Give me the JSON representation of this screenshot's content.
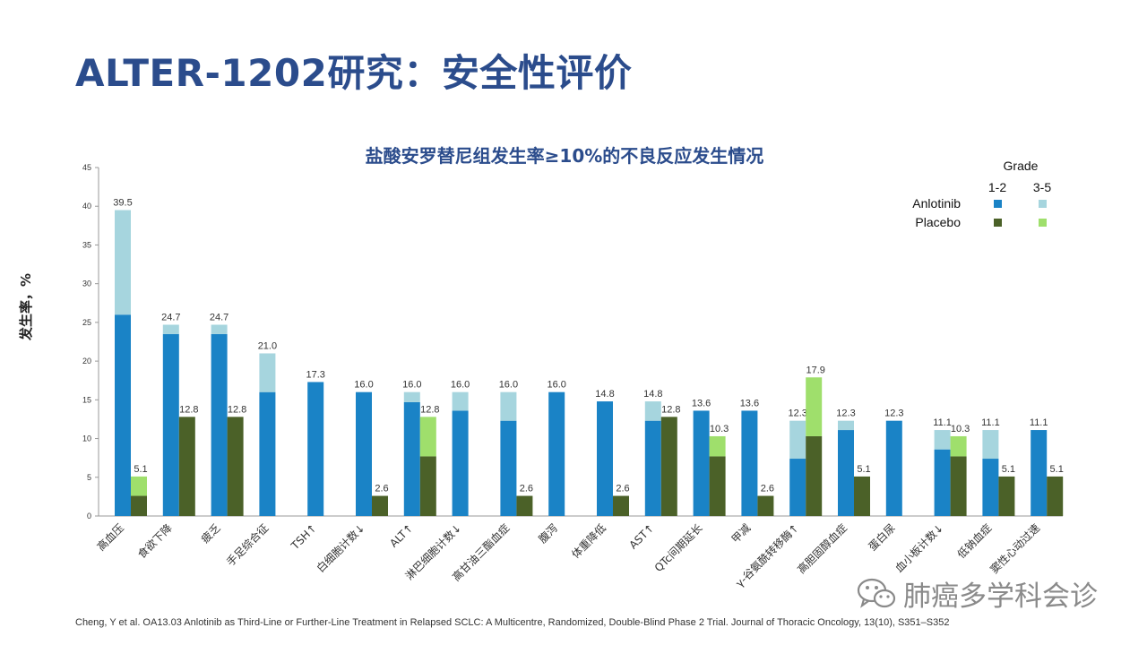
{
  "slide": {
    "title": "ALTER-1202研究：安全性评价",
    "citation": "Cheng, Y et al. OA13.03 Anlotinib as Third-Line or Further-Line Treatment in Relapsed SCLC: A Multicentre, Randomized, Double-Blind Phase 2 Trial. Journal of Thoracic Oncology, 13(10), S351–S352",
    "watermark": "肺癌多学科会诊",
    "watermark_icon": "wechat-icon"
  },
  "chart_data": {
    "type": "bar",
    "title": "盐酸安罗替尼组发生率≥10%的不良反应发生情况",
    "ylabel": "发生率，%",
    "xlabel": "",
    "ylim": [
      0,
      45
    ],
    "yticks": [
      0,
      5,
      10,
      15,
      20,
      25,
      30,
      35,
      40,
      45
    ],
    "grid": false,
    "legend": {
      "title": "Grade",
      "columns": [
        "1-2",
        "3-5"
      ],
      "rows": [
        {
          "name": "Anlotinib",
          "colors": [
            "#1a83c6",
            "#a6d5de"
          ]
        },
        {
          "name": "Placebo",
          "colors": [
            "#4b6128",
            "#9fdf6c"
          ]
        }
      ],
      "position": "top-right"
    },
    "categories": [
      "高血压",
      "食欲下降",
      "疲乏",
      "手足综合征",
      "TSH↑",
      "白细胞计数↓",
      "ALT↑",
      "淋巴细胞计数↓",
      "高甘油三酯血症",
      "腹泻",
      "体重降低",
      "AST↑",
      "QTc间期延长",
      "甲减",
      "γ-谷氨酰转移酶↑",
      "高胆固醇血症",
      "蛋白尿",
      "血小板计数↓",
      "低钠血症",
      "窦性心动过速"
    ],
    "series": [
      {
        "name": "Anlotinib",
        "grade": "1-2",
        "group": "Anlotinib",
        "color": "#1a83c6",
        "values": [
          26.0,
          23.5,
          23.5,
          16.0,
          17.3,
          16.0,
          14.7,
          13.6,
          12.3,
          16.0,
          14.8,
          12.3,
          13.6,
          13.6,
          7.4,
          11.1,
          12.3,
          8.6,
          7.4,
          11.1
        ]
      },
      {
        "name": "Anlotinib",
        "grade": "3-5",
        "group": "Anlotinib",
        "color": "#a6d5de",
        "values": [
          13.5,
          1.2,
          1.2,
          5.0,
          0,
          0,
          1.3,
          2.4,
          3.7,
          0,
          0,
          2.5,
          0,
          0,
          4.9,
          1.2,
          0,
          2.5,
          3.7,
          0
        ]
      },
      {
        "name": "Placebo",
        "grade": "1-2",
        "group": "Placebo",
        "color": "#4b6128",
        "values": [
          2.6,
          12.8,
          12.8,
          null,
          null,
          2.6,
          7.7,
          null,
          2.6,
          null,
          2.6,
          12.8,
          7.7,
          2.6,
          10.3,
          5.1,
          null,
          7.7,
          5.1,
          5.1
        ]
      },
      {
        "name": "Placebo",
        "grade": "3-5",
        "group": "Placebo",
        "color": "#9fdf6c",
        "values": [
          2.5,
          0,
          0,
          null,
          null,
          0,
          5.1,
          null,
          0,
          null,
          0,
          0,
          2.6,
          0,
          7.6,
          0,
          null,
          2.6,
          0,
          0
        ]
      }
    ],
    "totals": {
      "Anlotinib": [
        "39.5",
        "24.7",
        "24.7",
        "21.0",
        "17.3",
        "16.0",
        "16.0",
        "16.0",
        "16.0",
        "16.0",
        "14.8",
        "14.8",
        "13.6",
        "13.6",
        "12.3",
        "12.3",
        "12.3",
        "11.1",
        "11.1",
        "11.1"
      ],
      "Placebo": [
        "5.1",
        "12.8",
        "12.8",
        null,
        null,
        "2.6",
        "12.8",
        null,
        "2.6",
        null,
        "2.6",
        "12.8",
        "10.3",
        "2.6",
        "17.9",
        "5.1",
        null,
        "10.3",
        "5.1",
        "5.1"
      ]
    }
  }
}
